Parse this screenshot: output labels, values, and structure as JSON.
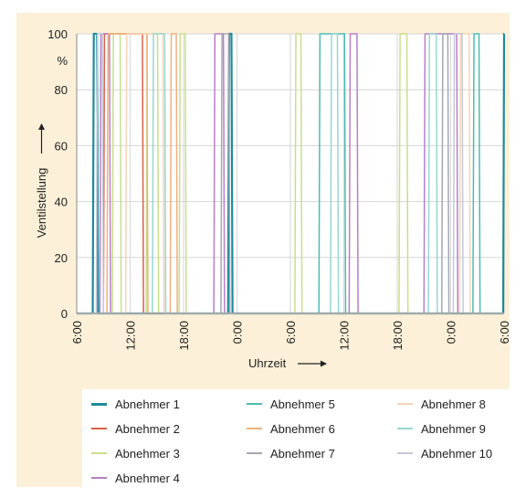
{
  "chart_data": {
    "type": "line",
    "xlabel": "Uhrzeit",
    "ylabel": "Ventilstellung",
    "yunit": "%",
    "ylim": [
      0,
      100
    ],
    "yticks": [
      0,
      20,
      40,
      60,
      80,
      100
    ],
    "xlim": [
      0,
      48
    ],
    "xticks": [
      0,
      6,
      12,
      18,
      24,
      30,
      36,
      42,
      48
    ],
    "xticklabels": [
      "6:00",
      "12:00",
      "18:00",
      "0:00",
      "6:00",
      "12:00",
      "18:00",
      "0:00",
      "6:00"
    ],
    "grid": true,
    "legend_position": "bottom",
    "series": [
      {
        "name": "Abnehmer 1",
        "color": "#1e8a9c",
        "on_intervals": [
          [
            1.8,
            2.4
          ],
          [
            17.0,
            17.5
          ],
          [
            47.9,
            48.0
          ]
        ]
      },
      {
        "name": "Abnehmer 2",
        "color": "#d9604a",
        "on_intervals": [
          [
            3.0,
            7.5
          ]
        ]
      },
      {
        "name": "Abnehmer 3",
        "color": "#c9de8c",
        "on_intervals": [
          [
            4.0,
            5.0
          ],
          [
            7.8,
            9.2
          ],
          [
            11.5,
            12.3
          ],
          [
            24.5,
            25.3
          ],
          [
            36.2,
            37.2
          ]
        ]
      },
      {
        "name": "Abnehmer 4",
        "color": "#b87fc6",
        "on_intervals": [
          [
            2.6,
            3.8
          ],
          [
            15.4,
            16.6
          ],
          [
            30.6,
            31.6
          ],
          [
            39.0,
            42.8
          ]
        ]
      },
      {
        "name": "Abnehmer 5",
        "color": "#4bbcb2",
        "on_intervals": [
          [
            27.2,
            30.2
          ],
          [
            44.5,
            45.3
          ]
        ]
      },
      {
        "name": "Abnehmer 6",
        "color": "#f0b07c",
        "on_intervals": [
          [
            3.4,
            8.0
          ],
          [
            10.5,
            11.3
          ]
        ]
      },
      {
        "name": "Abnehmer 7",
        "color": "#a5a7b3",
        "on_intervals": [
          [
            16.2,
            17.2
          ],
          [
            41.0,
            41.8
          ]
        ]
      },
      {
        "name": "Abnehmer 8",
        "color": "#f6d3b6",
        "on_intervals": [
          [
            5.5,
            9.8
          ],
          [
            43.0,
            44.2
          ]
        ]
      },
      {
        "name": "Abnehmer 9",
        "color": "#98d6d0",
        "on_intervals": [
          [
            8.5,
            10.0
          ],
          [
            28.5,
            29.4
          ],
          [
            39.5,
            40.5
          ]
        ]
      },
      {
        "name": "Abnehmer 10",
        "color": "#c4c9d8",
        "on_intervals": [
          [
            2.2,
            3.0
          ],
          [
            42.3,
            43.4
          ]
        ]
      }
    ]
  }
}
